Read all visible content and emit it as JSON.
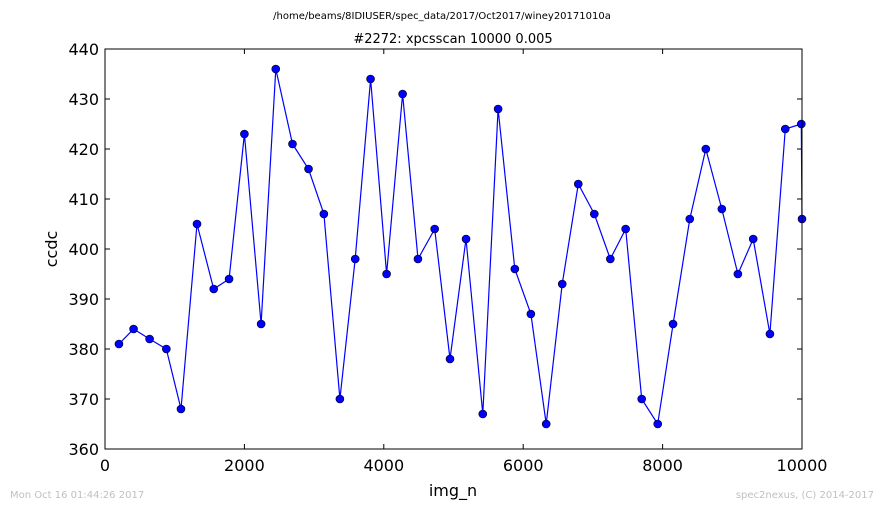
{
  "chart_data": {
    "type": "line",
    "suptitle": "/home/beams/8IDIUSER/spec_data/2017/Oct2017/winey20171010a",
    "title": "#2272: xpcsscan 10000 0.005",
    "xlabel": "img_n",
    "ylabel": "ccdc",
    "xlim": [
      0,
      10000
    ],
    "ylim": [
      360,
      440
    ],
    "xticks": [
      0,
      2000,
      4000,
      6000,
      8000,
      10000
    ],
    "yticks": [
      360,
      370,
      380,
      390,
      400,
      410,
      420,
      430,
      440
    ],
    "grid": false,
    "legend": "none",
    "line_color": "#0000ff",
    "marker": "circle",
    "series": [
      {
        "x": [
          200,
          410,
          640,
          880,
          1090,
          1320,
          1560,
          1780,
          2000,
          2240,
          2450,
          2690,
          2920,
          3140,
          3370,
          3590,
          3810,
          4040,
          4270,
          4490,
          4730,
          4950,
          5180,
          5420,
          5640,
          5880,
          6110,
          6330,
          6560,
          6790,
          7020,
          7250,
          7470,
          7700,
          7930,
          8150,
          8390,
          8620,
          8850,
          9080,
          9300,
          9540,
          9760,
          9990,
          10000
        ],
        "y": [
          381,
          384,
          382,
          380,
          368,
          405,
          392,
          394,
          423,
          385,
          436,
          421,
          416,
          407,
          370,
          398,
          434,
          395,
          431,
          398,
          404,
          378,
          402,
          367,
          428,
          396,
          387,
          365,
          393,
          413,
          407,
          398,
          404,
          370,
          365,
          385,
          406,
          420,
          408,
          395,
          402,
          383,
          424,
          425,
          406
        ]
      }
    ]
  },
  "footer": {
    "left": "Mon Oct 16 01:44:26 2017",
    "right": "spec2nexus, (C) 2014-2017"
  }
}
